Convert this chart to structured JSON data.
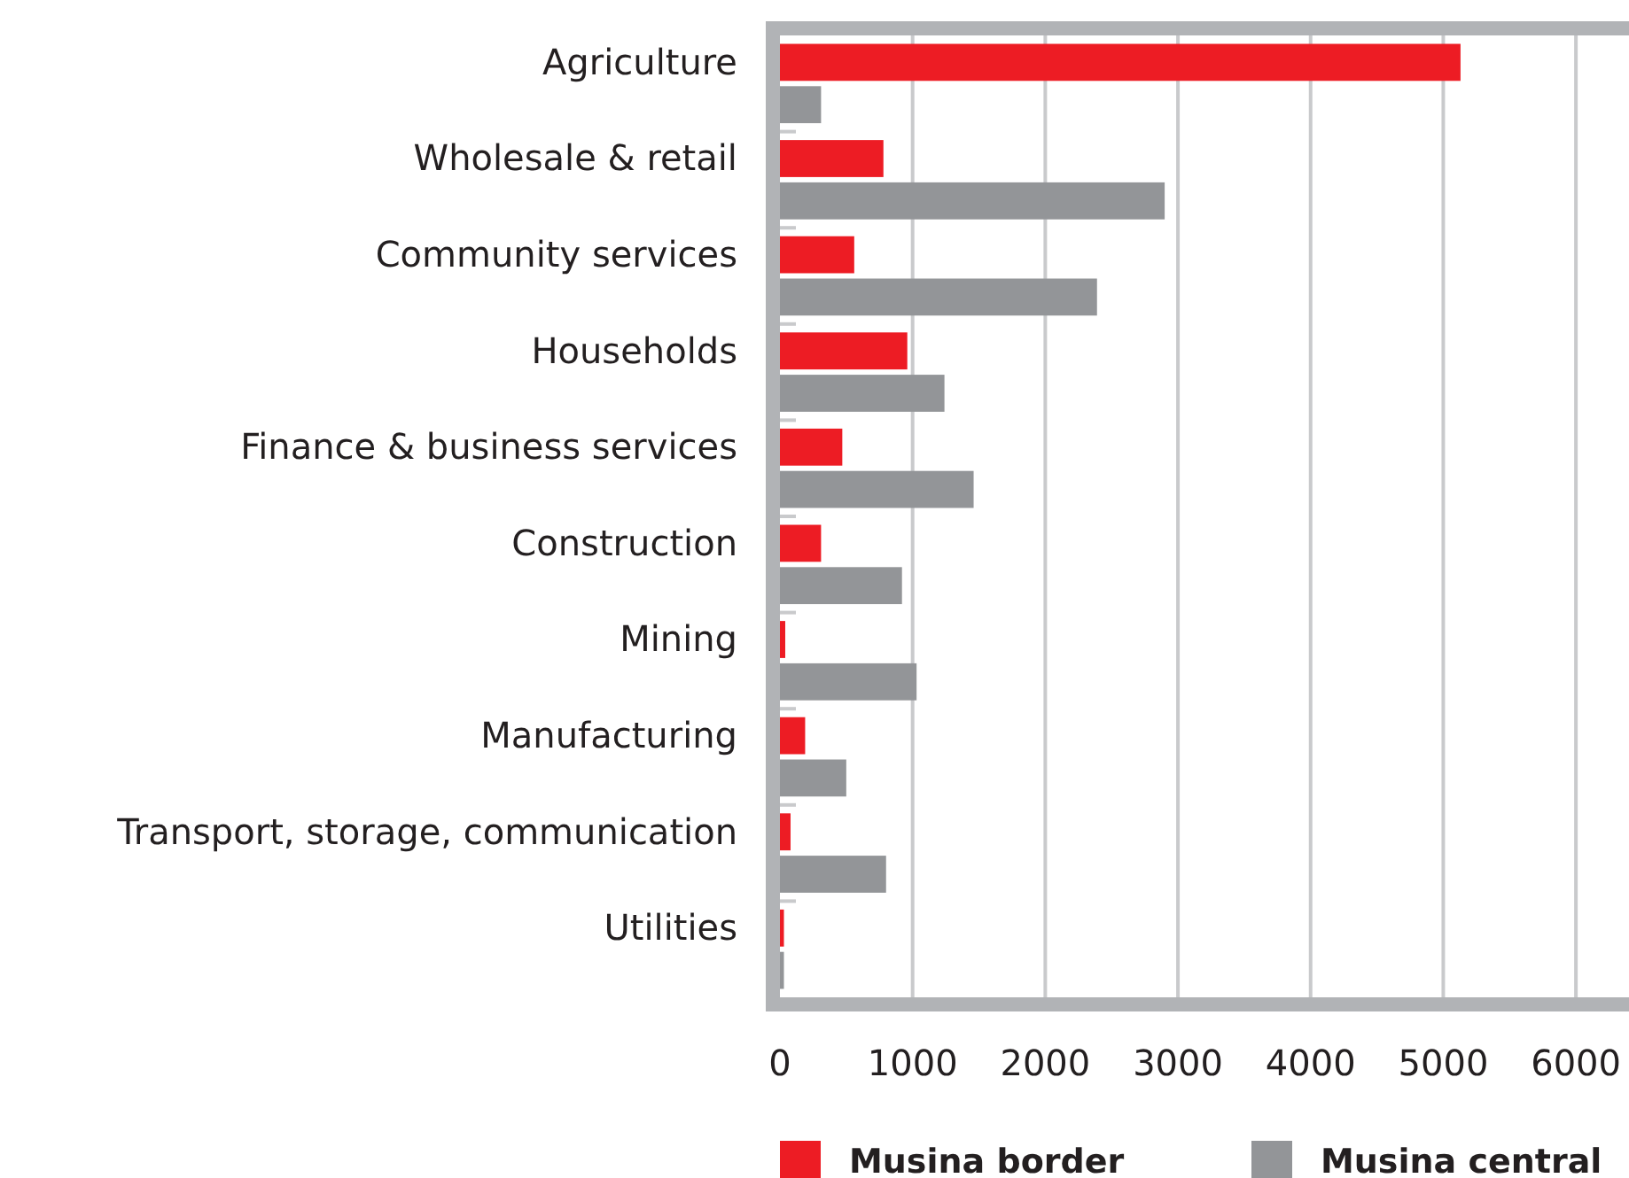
{
  "chart_data": {
    "type": "bar",
    "orientation": "horizontal",
    "categories": [
      "Agriculture",
      "Wholesale & retail",
      "Community services",
      "Households",
      "Finance & business services",
      "Construction",
      "Mining",
      "Manufacturing",
      "Transport, storage, communication",
      "Utilities"
    ],
    "series": [
      {
        "name": "Musina border",
        "color": "#ed1c24",
        "values": [
          5130,
          780,
          560,
          960,
          470,
          310,
          40,
          190,
          80,
          30
        ]
      },
      {
        "name": "Musina central",
        "color": "#939598",
        "values": [
          310,
          2900,
          2390,
          1240,
          1460,
          920,
          1030,
          500,
          800,
          30
        ]
      }
    ],
    "xlim": [
      0,
      6400
    ],
    "xticks": [
      0,
      1000,
      2000,
      3000,
      4000,
      5000,
      6000
    ],
    "grid": "x",
    "legend": "bottom"
  }
}
